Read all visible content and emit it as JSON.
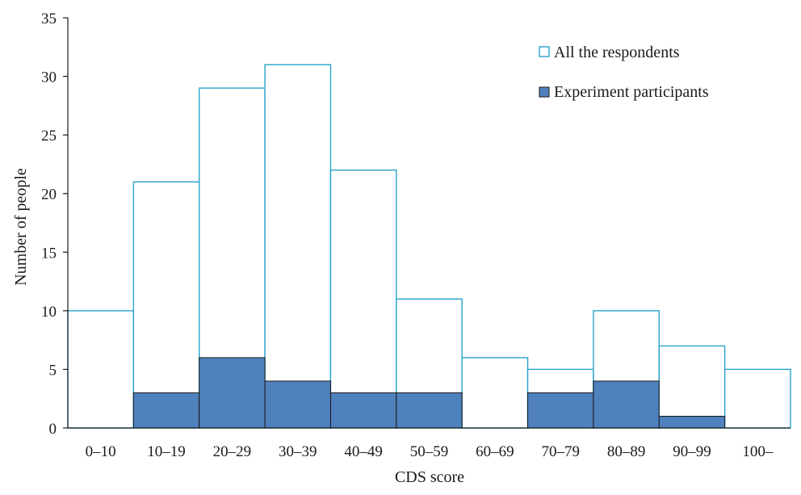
{
  "chart_data": {
    "type": "bar",
    "title": "",
    "xlabel": "CDS score",
    "ylabel": "Number of people",
    "ylim": [
      0,
      35
    ],
    "yticks": [
      0,
      5,
      10,
      15,
      20,
      25,
      30,
      35
    ],
    "categories": [
      "0–10",
      "10–19",
      "20–29",
      "30–39",
      "40–49",
      "50–59",
      "60–69",
      "70–79",
      "80–89",
      "90–99",
      "100–"
    ],
    "series": [
      {
        "name": "All the respondents",
        "values": [
          10,
          21,
          29,
          31,
          22,
          11,
          6,
          5,
          10,
          7,
          5
        ],
        "style": "outline",
        "color": "#29a3cc"
      },
      {
        "name": "Experiment participants",
        "values": [
          0,
          3,
          6,
          4,
          3,
          3,
          0,
          3,
          4,
          1,
          0
        ],
        "style": "filled",
        "color": "#4f81bd"
      }
    ],
    "legend_position": "top-right",
    "grid": false
  }
}
